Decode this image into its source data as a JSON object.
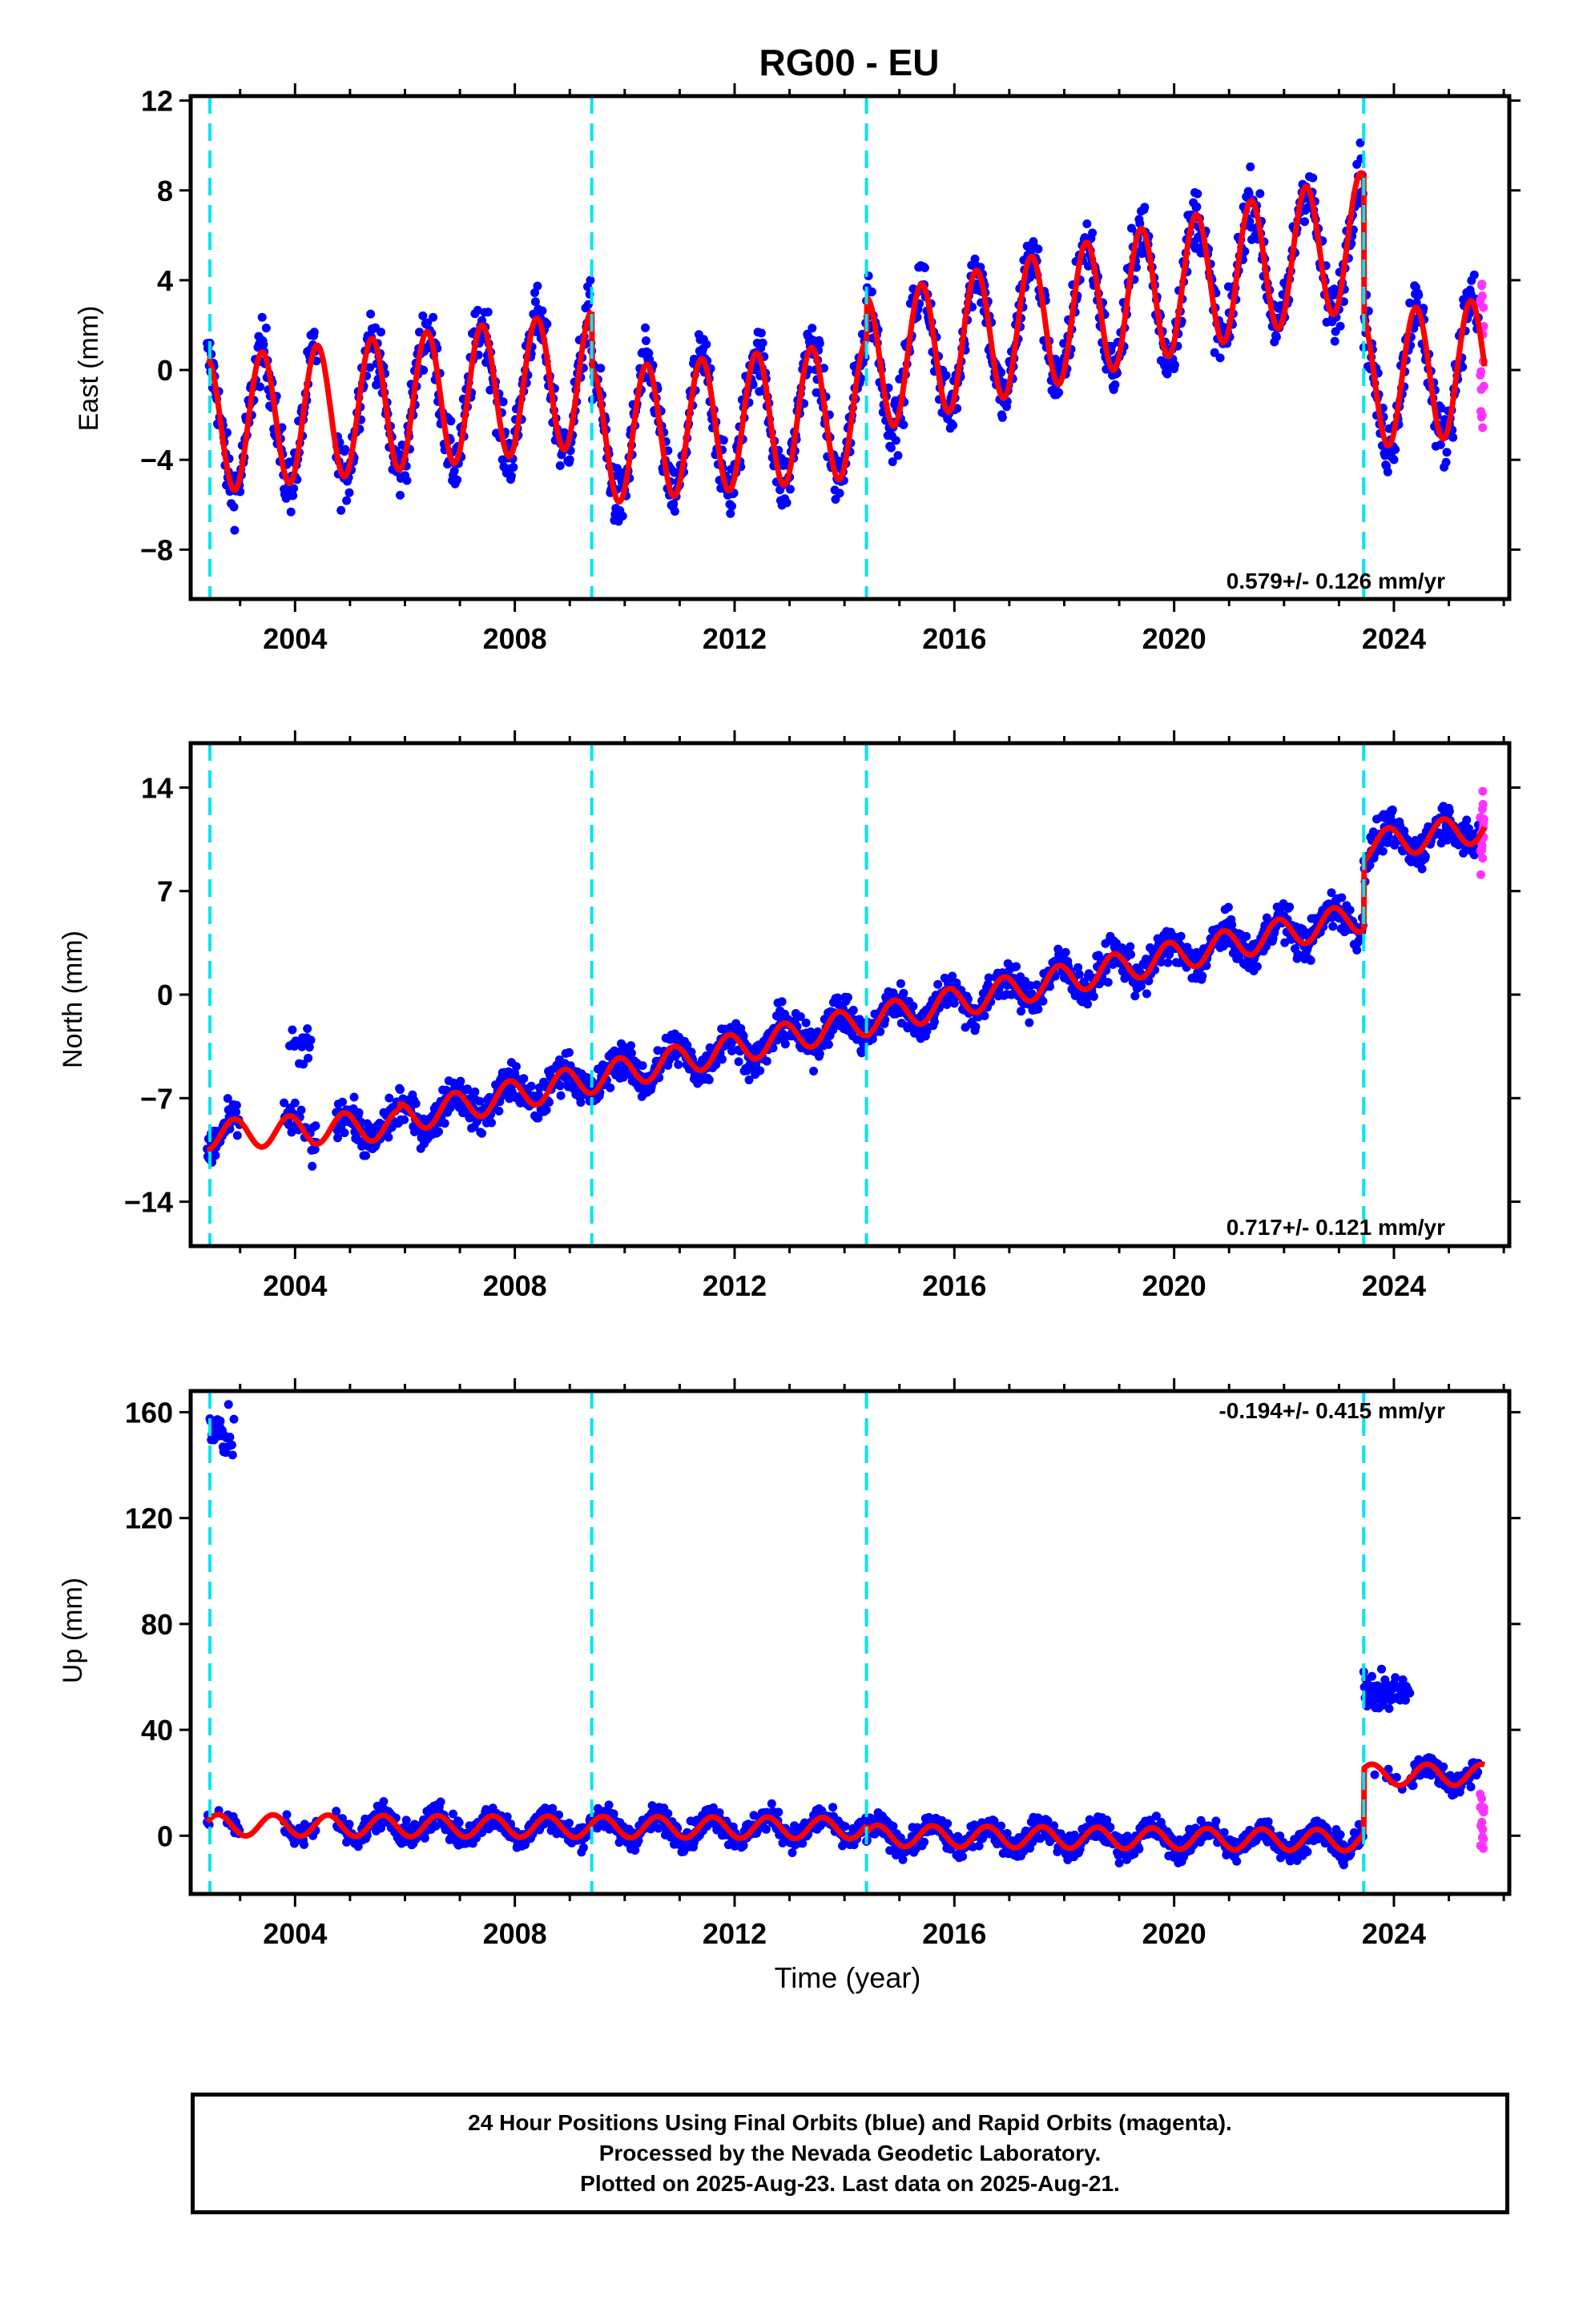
{
  "title": "RG00 - EU",
  "colors": {
    "final_points": "#0000ff",
    "rapid_points": "#ff33ff",
    "model": "#ff0000",
    "events": "#00e5ee",
    "axis": "#000000"
  },
  "chart_data": [
    {
      "type": "scatter",
      "id": "east",
      "title": "RG00 - EU",
      "xlabel": "",
      "ylabel": "East (mm)",
      "xlim": [
        2002.1,
        2026.1
      ],
      "ylim": [
        -10.2,
        12.2
      ],
      "yticks": [
        12,
        8,
        4,
        0,
        -4,
        -8
      ],
      "ytick_labels": [
        "12",
        "8",
        "4",
        "0",
        "−4",
        "−8"
      ],
      "xticks": [
        2004,
        2008,
        2012,
        2016,
        2020,
        2024
      ],
      "xtick_labels": [
        "2004",
        "2008",
        "2012",
        "2016",
        "2020",
        "2024"
      ],
      "rate_label": "0.579+/- 0.126 mm/yr",
      "rate_position": "bottom-right",
      "event_lines": [
        2002.45,
        2009.4,
        2014.4,
        2023.45
      ],
      "model": {
        "annual_amplitude": 3.0,
        "phase_peak": 0.4,
        "segments": [
          {
            "start": 2002.4,
            "end": 2009.4,
            "offset_at_start": -2.5,
            "rate": 0.3
          },
          {
            "start": 2009.4,
            "end": 2014.4,
            "offset_at_start": -3.0,
            "rate": 0.25
          },
          {
            "start": 2014.4,
            "end": 2023.45,
            "offset_at_start": 0.2,
            "rate": 0.62
          },
          {
            "start": 2023.45,
            "end": 2025.65,
            "offset_at_start": -0.5,
            "rate": 0.3
          }
        ]
      },
      "scatter_noise": 1.3,
      "rapid_range": [
        -3.5,
        4.5
      ]
    },
    {
      "type": "scatter",
      "id": "north",
      "xlabel": "",
      "ylabel": "North (mm)",
      "xlim": [
        2002.1,
        2026.1
      ],
      "ylim": [
        -17,
        17
      ],
      "yticks": [
        14,
        7,
        0,
        -7,
        -14
      ],
      "ytick_labels": [
        "14",
        "7",
        "0",
        "−7",
        "−14"
      ],
      "xticks": [
        2004,
        2008,
        2012,
        2016,
        2020,
        2024
      ],
      "xtick_labels": [
        "2004",
        "2008",
        "2012",
        "2016",
        "2020",
        "2024"
      ],
      "rate_label": "0.717+/- 0.121 mm/yr",
      "rate_position": "bottom-right",
      "event_lines": [
        2002.45,
        2009.4,
        2014.4,
        2023.45
      ],
      "model": {
        "annual_amplitude": 1.0,
        "phase_peak": 0.9,
        "segments": [
          {
            "start": 2002.4,
            "end": 2005.9,
            "offset_at_start": -9.5,
            "rate": 0.2
          },
          {
            "start": 2005.9,
            "end": 2023.45,
            "offset_at_start": -8.4,
            "rate": 0.78
          },
          {
            "start": 2023.45,
            "end": 2025.65,
            "offset_at_start": 10.0,
            "rate": 0.6
          }
        ]
      },
      "scatter_noise": 1.2,
      "rapid_range": [
        8,
        14
      ]
    },
    {
      "type": "scatter",
      "id": "up",
      "xlabel": "Time (year)",
      "ylabel": "Up (mm)",
      "xlim": [
        2002.1,
        2026.1
      ],
      "ylim": [
        -22,
        168
      ],
      "yticks": [
        160,
        120,
        80,
        40,
        0
      ],
      "ytick_labels": [
        "160",
        "120",
        "80",
        "40",
        "0"
      ],
      "xticks": [
        2004,
        2008,
        2012,
        2016,
        2020,
        2024
      ],
      "xtick_labels": [
        "2004",
        "2008",
        "2012",
        "2016",
        "2020",
        "2024"
      ],
      "rate_label": "-0.194+/- 0.415 mm/yr",
      "rate_position": "top-right",
      "event_lines": [
        2002.45,
        2009.4,
        2014.4,
        2023.45
      ],
      "model": {
        "annual_amplitude": 4.0,
        "phase_peak": 0.6,
        "segments": [
          {
            "start": 2002.4,
            "end": 2014.4,
            "offset_at_start": 4.0,
            "rate": -0.1
          },
          {
            "start": 2014.4,
            "end": 2023.45,
            "offset_at_start": 0.0,
            "rate": -0.2
          },
          {
            "start": 2023.45,
            "end": 2025.65,
            "offset_at_start": 23.0,
            "rate": 0.0
          }
        ]
      },
      "scatter_noise": 4.5,
      "rapid_range": [
        -5,
        18
      ],
      "outlier_clusters": [
        {
          "start": 2002.45,
          "end": 2002.9,
          "center": 152,
          "spread": 9
        },
        {
          "start": 2023.45,
          "end": 2024.3,
          "center": 54,
          "spread": 6
        }
      ]
    }
  ],
  "footer": {
    "line1": "24 Hour Positions Using Final Orbits (blue) and Rapid Orbits (magenta).",
    "line2": "Processed by the Nevada Geodetic Laboratory.",
    "line3": "Plotted on 2025-Aug-23. Last data on 2025-Aug-21."
  }
}
